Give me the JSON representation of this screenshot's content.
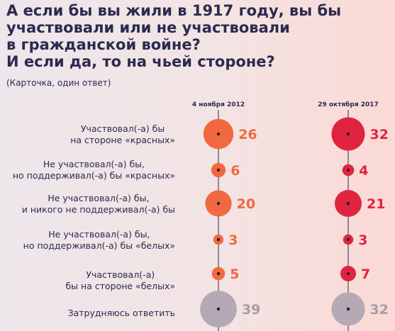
{
  "title_lines": [
    "А если бы вы жили в 1917 году, вы бы",
    "участвовали или не участвовали",
    "в гражданской войне?",
    "И если да, то на чьей стороне?"
  ],
  "subtitle": "(Карточка, один ответ)",
  "chart_data": {
    "type": "bubble",
    "columns": [
      "4 ноября 2012",
      "29 октября 2017"
    ],
    "rows": [
      {
        "label_lines": [
          "Участвовал(-а) бы",
          "на стороне «красных»"
        ],
        "values": [
          26,
          32
        ]
      },
      {
        "label_lines": [
          "Не участвовал(-а) бы,",
          "но поддерживал(-а) бы «красных»"
        ],
        "values": [
          6,
          4
        ]
      },
      {
        "label_lines": [
          "Не участвовал(-а) бы,",
          "и никого не поддерживал(-а) бы"
        ],
        "values": [
          20,
          21
        ]
      },
      {
        "label_lines": [
          "Не участвовал(-а) бы,",
          "но поддерживал(-а) бы «белых»"
        ],
        "values": [
          3,
          3
        ]
      },
      {
        "label_lines": [
          "Участвовал(-а)",
          "бы на стороне «белых»"
        ],
        "values": [
          5,
          7
        ]
      },
      {
        "label_lines": [
          "Затрудняюсь ответить"
        ],
        "values": [
          39,
          32
        ]
      }
    ],
    "colors": {
      "col1": "#f26840",
      "col2": "#e0243f",
      "undecided": "#b6a9b6",
      "undecided_text": "#a99ca8",
      "axis": "#2b2b50"
    }
  }
}
